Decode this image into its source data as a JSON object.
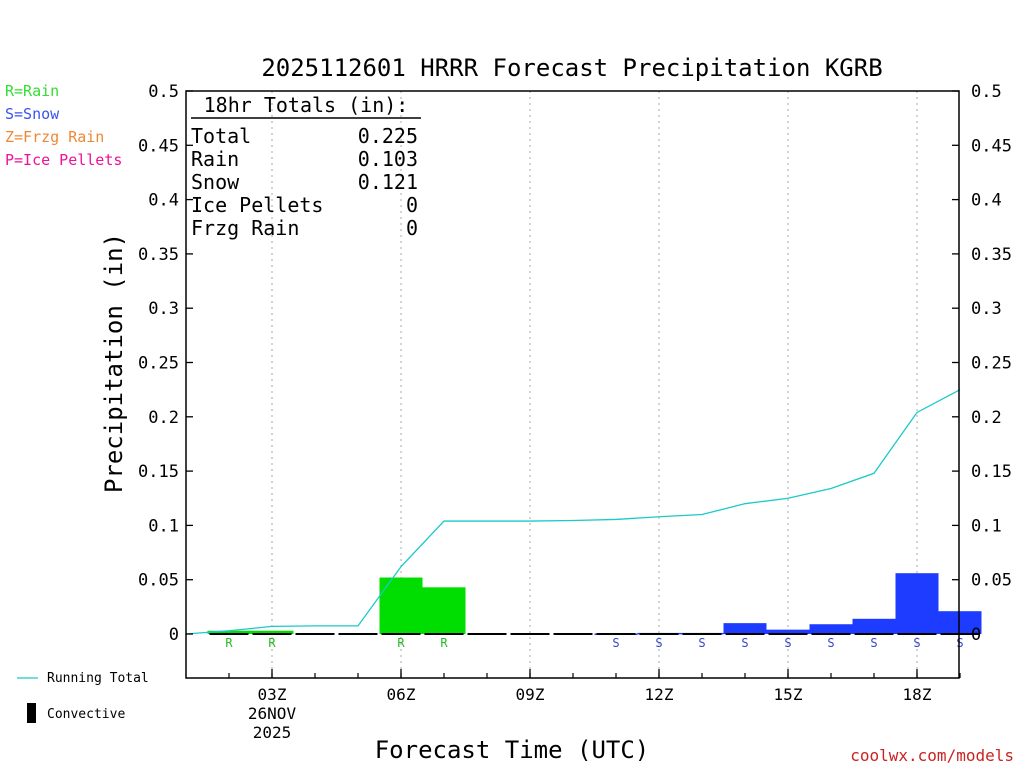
{
  "chart_data": {
    "type": "bar",
    "title": "2025112601 HRRR Forecast Precipitation KGRB",
    "xlabel": "Forecast Time (UTC)",
    "ylabel": "Precipitation (in)",
    "ylim": [
      0,
      0.5
    ],
    "y_ticks": [
      "0",
      "0.05",
      "0.1",
      "0.15",
      "0.2",
      "0.25",
      "0.3",
      "0.35",
      "0.4",
      "0.45",
      "0.5"
    ],
    "x_ticks": [
      {
        "hour": 3,
        "label": "03Z",
        "sub1": "26NOV",
        "sub2": "2025"
      },
      {
        "hour": 6,
        "label": "06Z"
      },
      {
        "hour": 9,
        "label": "09Z"
      },
      {
        "hour": 12,
        "label": "12Z"
      },
      {
        "hour": 15,
        "label": "15Z"
      },
      {
        "hour": 18,
        "label": "18Z"
      }
    ],
    "grid": "dotted vertical at labeled hours",
    "type_legend": [
      {
        "text": "R=Rain",
        "color": "#33dd33"
      },
      {
        "text": "S=Snow",
        "color": "#3a52ee"
      },
      {
        "text": "Z=Frzg Rain",
        "color": "#ee8833"
      },
      {
        "text": "P=Ice Pellets",
        "color": "#ee1199"
      }
    ],
    "colors": {
      "rain": "#00dd00",
      "snow": "#1e3cff",
      "running_total": "#1cc9c9",
      "rain_label": "#22bb22",
      "snow_label": "#3344cc"
    },
    "totals": {
      "header": "18hr Totals (in):",
      "rows": [
        {
          "label": "Total",
          "value": "0.225"
        },
        {
          "label": "Rain",
          "value": "0.103"
        },
        {
          "label": "Snow",
          "value": "0.121"
        },
        {
          "label": "Ice Pellets",
          "value": "0"
        },
        {
          "label": "Frzg Rain",
          "value": "0"
        }
      ]
    },
    "series": [
      {
        "name": "Hourly",
        "hours": [
          2,
          3,
          4,
          5,
          6,
          7,
          8,
          9,
          10,
          11,
          12,
          13,
          14,
          15,
          16,
          17,
          18,
          19
        ],
        "types": [
          "R",
          "R",
          "",
          "",
          "R",
          "R",
          "",
          "",
          "",
          "S",
          "S",
          "S",
          "S",
          "S",
          "S",
          "S",
          "S",
          "S"
        ],
        "values": [
          0.003,
          0.003,
          0,
          0,
          0.052,
          0.043,
          0,
          0,
          0,
          0.0005,
          0.001,
          0.001,
          0.01,
          0.004,
          0.009,
          0.014,
          0.056,
          0.021
        ]
      },
      {
        "name": "Running Total",
        "hours": [
          1,
          2,
          3,
          4,
          5,
          6,
          7,
          8,
          9,
          10,
          11,
          12,
          13,
          14,
          15,
          16,
          17,
          18,
          19
        ],
        "values": [
          0,
          0.003,
          0.007,
          0.0075,
          0.0075,
          0.062,
          0.104,
          0.104,
          0.104,
          0.1045,
          0.1055,
          0.108,
          0.11,
          0.12,
          0.125,
          0.134,
          0.148,
          0.204,
          0.225
        ]
      }
    ],
    "bottom_legend": [
      {
        "text": "Running Total"
      },
      {
        "text": "Convective"
      }
    ],
    "credit": "coolwx.com/models"
  }
}
